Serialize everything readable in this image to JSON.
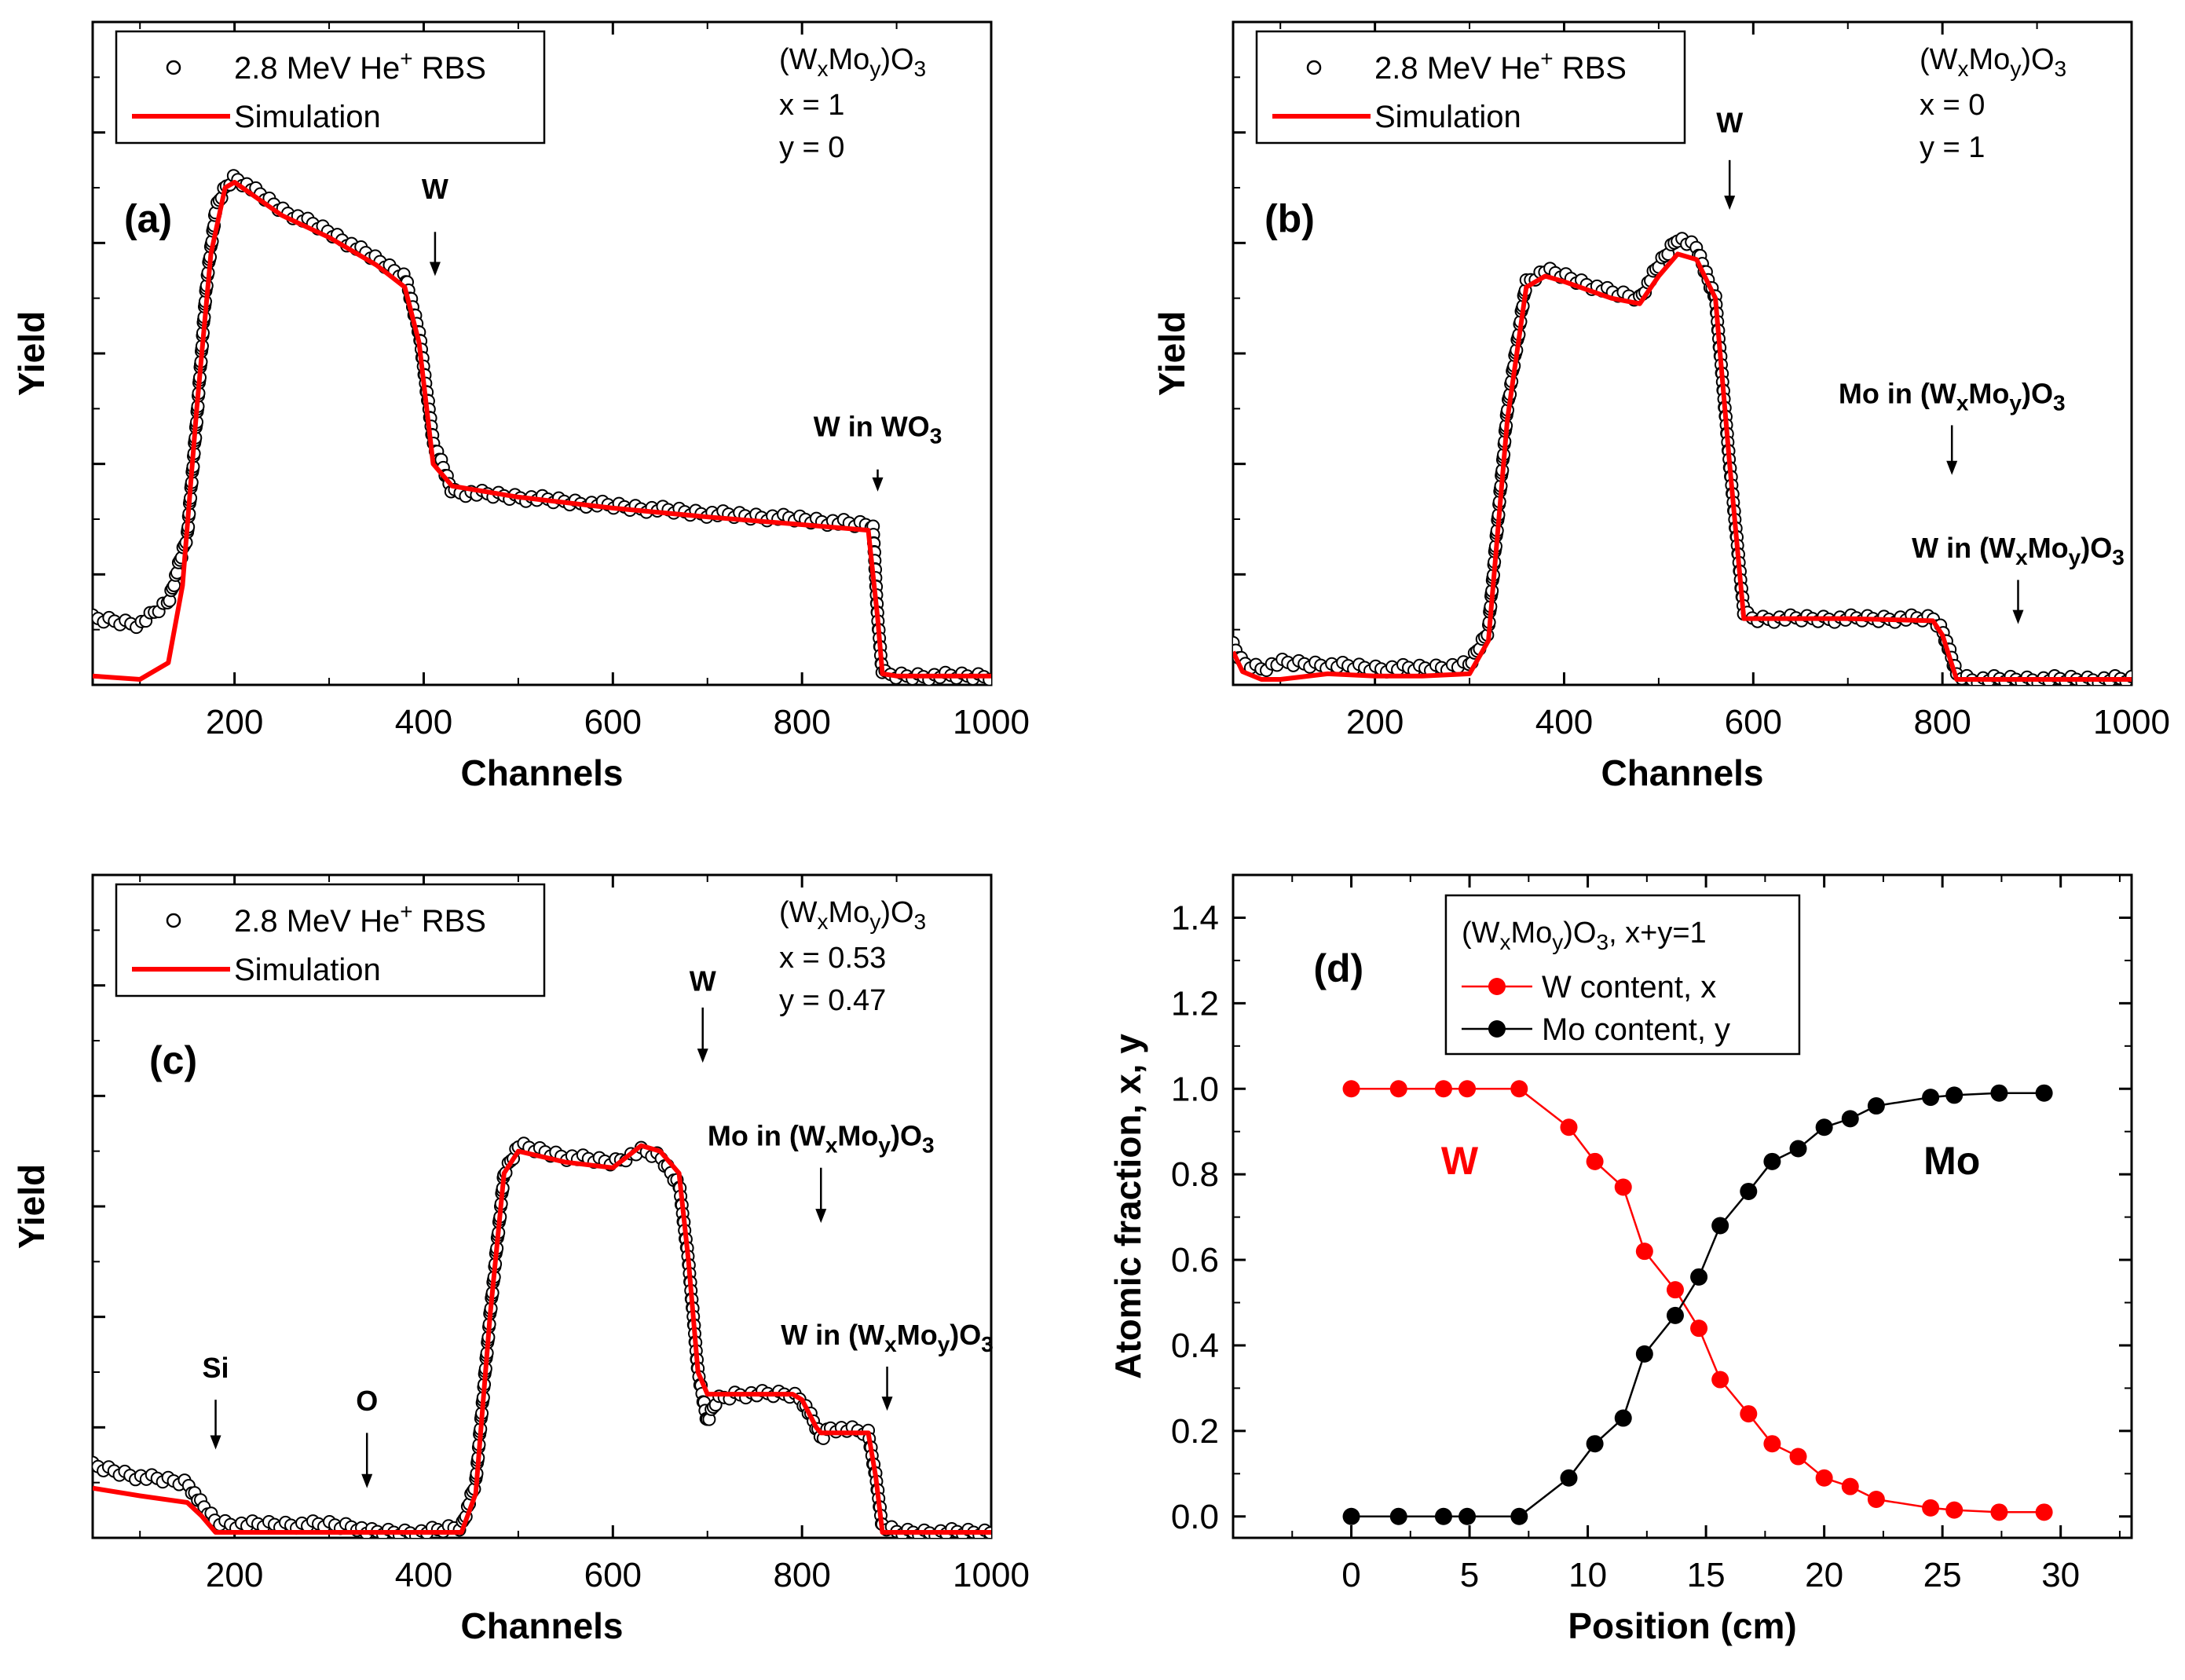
{
  "chart_data": [
    {
      "id": "a",
      "type": "scatter",
      "panel_label": "(a)",
      "xlabel": "Channels",
      "ylabel": "Yield",
      "xlim": [
        50,
        1000
      ],
      "ylim": [
        0,
        6
      ],
      "xticks": [
        200,
        400,
        600,
        800,
        1000
      ],
      "xtick_labels": [
        "200",
        "400",
        "600",
        "800",
        "1000"
      ],
      "legend": {
        "rbs_label": "2.8 MeV He",
        "rbs_sup": "+",
        "rbs_suffix": " RBS",
        "sim_label": "Simulation"
      },
      "composition": {
        "formula": [
          {
            "t": "(W",
            "s": ""
          },
          {
            "t": "x",
            "s": "sub"
          },
          {
            "t": "Mo",
            "s": ""
          },
          {
            "t": "y",
            "s": "sub"
          },
          {
            "t": ")O",
            "s": ""
          },
          {
            "t": "3",
            "s": "sub"
          }
        ],
        "x_line": "x = 1",
        "y_line": "y = 0"
      },
      "annotations": [
        {
          "runs": [
            {
              "t": "W",
              "s": ""
            }
          ],
          "x": 412,
          "y_from": 4.1,
          "y_to": 3.7,
          "text_y": 4.4
        },
        {
          "runs": [
            {
              "t": "W in WO",
              "s": ""
            },
            {
              "t": "3",
              "s": "sub"
            }
          ],
          "x": 880,
          "y_from": 1.95,
          "y_to": 1.75,
          "text_y": 2.25
        }
      ],
      "series": [
        {
          "name": "RBS",
          "style": "markers",
          "x": [
            50,
            100,
            130,
            150,
            160,
            170,
            180,
            190,
            200,
            250,
            300,
            350,
            380,
            395,
            410,
            430,
            500,
            600,
            700,
            800,
            860,
            875,
            880,
            885,
            900,
            1000
          ],
          "y": [
            0.6,
            0.55,
            0.75,
            1.35,
            2.4,
            3.6,
            4.3,
            4.5,
            4.6,
            4.3,
            4.1,
            3.85,
            3.7,
            3.2,
            2.2,
            1.75,
            1.7,
            1.62,
            1.55,
            1.5,
            1.45,
            1.45,
            0.6,
            0.1,
            0.08,
            0.08
          ]
        },
        {
          "name": "Simulation",
          "style": "line",
          "color": "#ff0000",
          "x": [
            50,
            100,
            130,
            145,
            160,
            175,
            190,
            200,
            250,
            300,
            350,
            380,
            395,
            410,
            430,
            500,
            600,
            700,
            800,
            870,
            880,
            885,
            900,
            1000
          ],
          "y": [
            0.08,
            0.05,
            0.2,
            0.9,
            2.5,
            3.9,
            4.5,
            4.55,
            4.25,
            4.05,
            3.8,
            3.6,
            3.1,
            2.0,
            1.8,
            1.7,
            1.6,
            1.52,
            1.45,
            1.4,
            0.6,
            0.1,
            0.08,
            0.08
          ]
        }
      ]
    },
    {
      "id": "b",
      "type": "scatter",
      "panel_label": "(b)",
      "xlabel": "Channels",
      "ylabel": "Yield",
      "xlim": [
        50,
        1000
      ],
      "ylim": [
        0,
        6
      ],
      "xticks": [
        200,
        400,
        600,
        800,
        1000
      ],
      "xtick_labels": [
        "200",
        "400",
        "600",
        "800",
        "1000"
      ],
      "legend": {
        "rbs_label": "2.8 MeV He",
        "rbs_sup": "+",
        "rbs_suffix": " RBS",
        "sim_label": "Simulation"
      },
      "composition": {
        "formula": [
          {
            "t": "(W",
            "s": ""
          },
          {
            "t": "x",
            "s": "sub"
          },
          {
            "t": "Mo",
            "s": ""
          },
          {
            "t": "y",
            "s": "sub"
          },
          {
            "t": ")O",
            "s": ""
          },
          {
            "t": "3",
            "s": "sub"
          }
        ],
        "x_line": "x = 0",
        "y_line": "y = 1"
      },
      "annotations": [
        {
          "runs": [
            {
              "t": "W",
              "s": ""
            }
          ],
          "x": 575,
          "y_from": 4.75,
          "y_to": 4.3,
          "text_y": 5.0
        },
        {
          "runs": [
            {
              "t": "Mo in (W",
              "s": ""
            },
            {
              "t": "x",
              "s": "sub"
            },
            {
              "t": "Mo",
              "s": ""
            },
            {
              "t": "y",
              "s": "sub"
            },
            {
              "t": ")O",
              "s": ""
            },
            {
              "t": "3",
              "s": "sub"
            }
          ],
          "x": 810,
          "y_from": 2.35,
          "y_to": 1.9,
          "text_y": 2.55
        },
        {
          "runs": [
            {
              "t": "W in (W",
              "s": ""
            },
            {
              "t": "x",
              "s": "sub"
            },
            {
              "t": "Mo",
              "s": ""
            },
            {
              "t": "y",
              "s": "sub"
            },
            {
              "t": ")O",
              "s": ""
            },
            {
              "t": "3",
              "s": "sub"
            }
          ],
          "x": 880,
          "y_from": 0.95,
          "y_to": 0.55,
          "text_y": 1.15
        }
      ],
      "series": [
        {
          "name": "RBS",
          "style": "markers",
          "x": [
            50,
            60,
            80,
            100,
            150,
            200,
            250,
            300,
            320,
            340,
            360,
            380,
            400,
            450,
            480,
            500,
            520,
            540,
            560,
            575,
            590,
            600,
            700,
            790,
            800,
            815,
            830,
            1000
          ],
          "y": [
            0.35,
            0.2,
            0.15,
            0.2,
            0.18,
            0.15,
            0.15,
            0.18,
            0.5,
            2.5,
            3.65,
            3.75,
            3.7,
            3.55,
            3.5,
            3.8,
            4.05,
            3.95,
            3.5,
            2.0,
            0.65,
            0.6,
            0.6,
            0.6,
            0.5,
            0.1,
            0.05,
            0.05
          ]
        },
        {
          "name": "Simulation",
          "style": "line",
          "color": "#ff0000",
          "x": [
            50,
            60,
            80,
            100,
            150,
            200,
            250,
            300,
            320,
            340,
            360,
            380,
            400,
            450,
            480,
            500,
            520,
            540,
            560,
            575,
            590,
            600,
            700,
            790,
            800,
            815,
            830,
            1000
          ],
          "y": [
            0.3,
            0.12,
            0.05,
            0.05,
            0.1,
            0.08,
            0.08,
            0.1,
            0.4,
            2.4,
            3.6,
            3.7,
            3.65,
            3.5,
            3.45,
            3.7,
            3.9,
            3.85,
            3.5,
            2.0,
            0.6,
            0.6,
            0.6,
            0.58,
            0.45,
            0.05,
            0.05,
            0.05
          ]
        }
      ]
    },
    {
      "id": "c",
      "type": "scatter",
      "panel_label": "(c)",
      "xlabel": "Channels",
      "ylabel": "Yield",
      "xlim": [
        50,
        1000
      ],
      "ylim": [
        0,
        6
      ],
      "xticks": [
        200,
        400,
        600,
        800,
        1000
      ],
      "xtick_labels": [
        "200",
        "400",
        "600",
        "800",
        "1000"
      ],
      "legend": {
        "rbs_label": "2.8 MeV He",
        "rbs_sup": "+",
        "rbs_suffix": " RBS",
        "sim_label": "Simulation"
      },
      "composition": {
        "formula": [
          {
            "t": "(W",
            "s": ""
          },
          {
            "t": "x",
            "s": "sub"
          },
          {
            "t": "Mo",
            "s": ""
          },
          {
            "t": "y",
            "s": "sub"
          },
          {
            "t": ")O",
            "s": ""
          },
          {
            "t": "3",
            "s": "sub"
          }
        ],
        "x_line": "x = 0.53",
        "y_line": "y = 0.47"
      },
      "annotations": [
        {
          "runs": [
            {
              "t": "W",
              "s": ""
            }
          ],
          "x": 695,
          "y_from": 4.8,
          "y_to": 4.3,
          "text_y": 4.95
        },
        {
          "runs": [
            {
              "t": "Mo in (W",
              "s": ""
            },
            {
              "t": "x",
              "s": "sub"
            },
            {
              "t": "Mo",
              "s": ""
            },
            {
              "t": "y",
              "s": "sub"
            },
            {
              "t": ")O",
              "s": ""
            },
            {
              "t": "3",
              "s": "sub"
            }
          ],
          "x": 820,
          "y_from": 3.35,
          "y_to": 2.85,
          "text_y": 3.55
        },
        {
          "runs": [
            {
              "t": "W in (W",
              "s": ""
            },
            {
              "t": "x",
              "s": "sub"
            },
            {
              "t": "Mo",
              "s": ""
            },
            {
              "t": "y",
              "s": "sub"
            },
            {
              "t": ")O",
              "s": ""
            },
            {
              "t": "3",
              "s": "sub"
            }
          ],
          "x": 890,
          "y_from": 1.55,
          "y_to": 1.15,
          "text_y": 1.75
        },
        {
          "runs": [
            {
              "t": "Si",
              "s": ""
            }
          ],
          "x": 180,
          "y_from": 1.25,
          "y_to": 0.8,
          "text_y": 1.45
        },
        {
          "runs": [
            {
              "t": "O",
              "s": ""
            }
          ],
          "x": 340,
          "y_from": 0.95,
          "y_to": 0.45,
          "text_y": 1.15
        }
      ],
      "series": [
        {
          "name": "RBS",
          "style": "markers",
          "x": [
            50,
            100,
            150,
            165,
            180,
            200,
            300,
            330,
            340,
            400,
            440,
            455,
            470,
            485,
            500,
            550,
            600,
            630,
            650,
            670,
            680,
            690,
            700,
            710,
            730,
            790,
            800,
            815,
            820,
            830,
            870,
            878,
            885,
            900,
            1000
          ],
          "y": [
            0.65,
            0.55,
            0.5,
            0.3,
            0.15,
            0.12,
            0.12,
            0.1,
            0.05,
            0.05,
            0.1,
            0.5,
            2.0,
            3.3,
            3.55,
            3.45,
            3.4,
            3.5,
            3.45,
            3.2,
            2.5,
            1.5,
            1.05,
            1.25,
            1.3,
            1.3,
            1.25,
            1.0,
            0.9,
            1.0,
            0.95,
            0.55,
            0.1,
            0.05,
            0.05
          ]
        },
        {
          "name": "Simulation",
          "style": "line",
          "color": "#ff0000",
          "x": [
            50,
            100,
            150,
            165,
            180,
            200,
            300,
            330,
            340,
            400,
            440,
            455,
            470,
            485,
            500,
            550,
            600,
            630,
            650,
            670,
            680,
            690,
            700,
            710,
            730,
            790,
            800,
            815,
            820,
            830,
            870,
            878,
            885,
            900,
            1000
          ],
          "y": [
            0.45,
            0.38,
            0.32,
            0.2,
            0.05,
            0.05,
            0.05,
            0.05,
            0.05,
            0.05,
            0.05,
            0.4,
            2.0,
            3.3,
            3.5,
            3.4,
            3.35,
            3.55,
            3.5,
            3.3,
            2.5,
            1.5,
            1.3,
            1.3,
            1.3,
            1.3,
            1.25,
            1.0,
            0.95,
            0.95,
            0.95,
            0.55,
            0.05,
            0.05,
            0.05
          ]
        }
      ]
    },
    {
      "id": "d",
      "type": "line",
      "panel_label": "(d)",
      "xlabel": "Position (cm)",
      "ylabel": "Atomic fraction, x, y",
      "xlim": [
        -5,
        33
      ],
      "ylim": [
        -0.05,
        1.5
      ],
      "xticks": [
        0,
        5,
        10,
        15,
        20,
        25,
        30
      ],
      "xtick_labels": [
        "0",
        "5",
        "10",
        "15",
        "20",
        "25",
        "30"
      ],
      "yticks": [
        0.0,
        0.2,
        0.4,
        0.6,
        0.8,
        1.0,
        1.2,
        1.4
      ],
      "ytick_labels": [
        "0.0",
        "0.2",
        "0.4",
        "0.6",
        "0.8",
        "1.0",
        "1.2",
        "1.4"
      ],
      "legend": {
        "formula": [
          {
            "t": "(W",
            "s": ""
          },
          {
            "t": "x",
            "s": "sub"
          },
          {
            "t": "Mo",
            "s": ""
          },
          {
            "t": "y",
            "s": "sub"
          },
          {
            "t": ")O",
            "s": ""
          },
          {
            "t": "3",
            "s": "sub"
          },
          {
            "t": ",  x+y=1",
            "s": ""
          }
        ],
        "w_label": "W content, x",
        "mo_label": "Mo content, y"
      },
      "curve_labels": [
        {
          "text": "W",
          "color": "#ff0000",
          "x": 3.8,
          "y": 0.8
        },
        {
          "text": "Mo",
          "color": "#000000",
          "x": 24.2,
          "y": 0.8
        }
      ],
      "series": [
        {
          "name": "W content, x",
          "color": "#ff0000",
          "x": [
            0,
            2,
            3.9,
            4.9,
            7.1,
            9.2,
            10.3,
            11.5,
            12.4,
            13.7,
            14.7,
            15.6,
            16.8,
            17.8,
            18.9,
            20.0,
            21.1,
            22.2,
            24.5,
            25.5,
            27.4,
            29.3
          ],
          "y": [
            1.0,
            1.0,
            1.0,
            1.0,
            1.0,
            0.91,
            0.83,
            0.77,
            0.62,
            0.53,
            0.44,
            0.32,
            0.24,
            0.17,
            0.14,
            0.09,
            0.07,
            0.04,
            0.02,
            0.015,
            0.01,
            0.01
          ]
        },
        {
          "name": "Mo content, y",
          "color": "#000000",
          "x": [
            0,
            2,
            3.9,
            4.9,
            7.1,
            9.2,
            10.3,
            11.5,
            12.4,
            13.7,
            14.7,
            15.6,
            16.8,
            17.8,
            18.9,
            20.0,
            21.1,
            22.2,
            24.5,
            25.5,
            27.4,
            29.3
          ],
          "y": [
            0.0,
            0.0,
            0.0,
            0.0,
            0.0,
            0.09,
            0.17,
            0.23,
            0.38,
            0.47,
            0.56,
            0.68,
            0.76,
            0.83,
            0.86,
            0.91,
            0.93,
            0.96,
            0.98,
            0.985,
            0.99,
            0.99
          ]
        }
      ]
    }
  ]
}
